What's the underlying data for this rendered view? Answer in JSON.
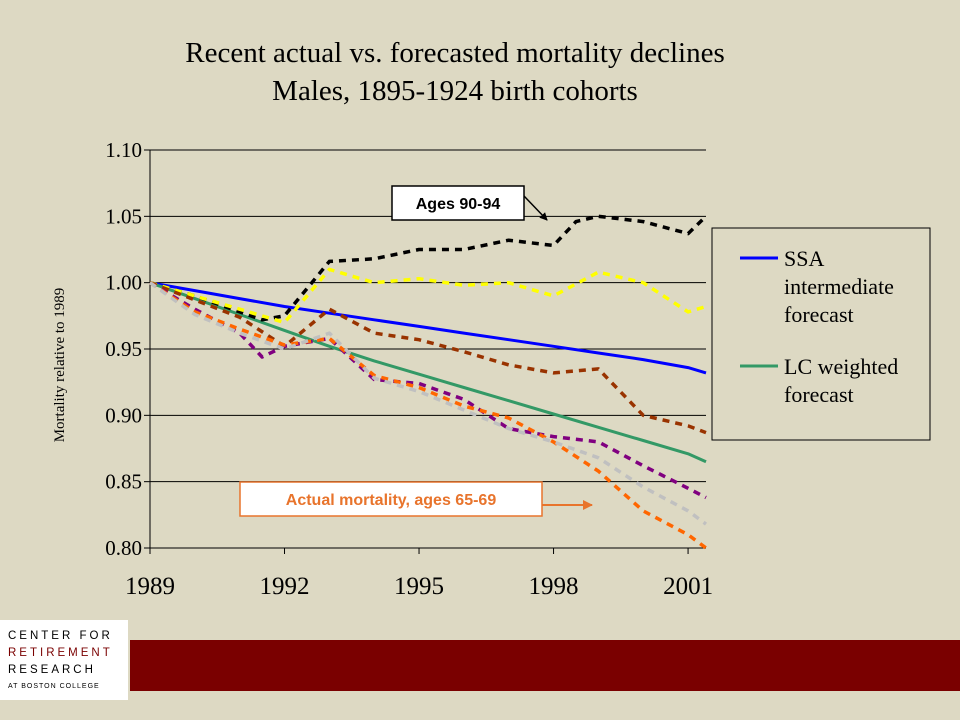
{
  "title": {
    "line1": "Recent actual vs. forecasted mortality declines",
    "line2": "Males, 1895-1924 birth cohorts"
  },
  "logo": {
    "line1": "CENTER FOR",
    "line2": "RETIREMENT",
    "line3": "RESEARCH",
    "line4": "AT BOSTON COLLEGE"
  },
  "colors": {
    "background": "#ddd9c3",
    "footer_bar": "#7a0000"
  },
  "chart_data": {
    "type": "line",
    "ylabel": "Mortality relative to 1989",
    "xlim": [
      1989,
      2001.4
    ],
    "ylim": [
      0.8,
      1.1
    ],
    "xticks": [
      1989,
      1992,
      1995,
      1998,
      2001
    ],
    "xtick_labels": [
      "1989",
      "1992",
      "1995",
      "1998",
      "2001"
    ],
    "yticks": [
      0.8,
      0.85,
      0.9,
      0.95,
      1.0,
      1.05,
      1.1
    ],
    "ytick_labels": [
      "0.80",
      "0.85",
      "0.90",
      "0.95",
      "1.00",
      "1.05",
      "1.10"
    ],
    "grid": "horizontal",
    "legend": {
      "placement": "right",
      "entries": [
        "SSA intermediate forecast",
        "LC weighted forecast"
      ]
    },
    "annotations": [
      {
        "text": "Ages 90-94",
        "target_series": "dashed-black"
      },
      {
        "text": "Actual mortality, ages 65-69",
        "target_series": "dashed-orange"
      }
    ],
    "series": [
      {
        "name": "SSA intermediate forecast",
        "style": "solid",
        "color": "#0000ff",
        "x": [
          1989,
          1990,
          1991,
          1992,
          1993,
          1994,
          1995,
          1996,
          1997,
          1998,
          1999,
          2000,
          2001,
          2001.4
        ],
        "y": [
          1.0,
          0.994,
          0.988,
          0.982,
          0.977,
          0.972,
          0.967,
          0.962,
          0.957,
          0.952,
          0.947,
          0.942,
          0.936,
          0.932
        ]
      },
      {
        "name": "LC weighted forecast",
        "style": "solid",
        "color": "#339966",
        "x": [
          1989,
          1990,
          1991,
          1992,
          1993,
          1994,
          1995,
          1996,
          1997,
          1998,
          1999,
          2000,
          2001,
          2001.4
        ],
        "y": [
          1.0,
          0.988,
          0.976,
          0.964,
          0.952,
          0.941,
          0.931,
          0.921,
          0.911,
          0.901,
          0.891,
          0.881,
          0.871,
          0.865
        ]
      },
      {
        "style": "dashed",
        "color": "#000000",
        "x": [
          1989,
          1990,
          1991,
          1991.5,
          1992,
          1993,
          1994,
          1995,
          1996,
          1997,
          1998,
          1998.5,
          1999,
          2000,
          2001,
          2001.4
        ],
        "y": [
          1.0,
          0.99,
          0.978,
          0.972,
          0.975,
          1.016,
          1.018,
          1.025,
          1.025,
          1.032,
          1.028,
          1.046,
          1.05,
          1.046,
          1.037,
          1.05
        ]
      },
      {
        "style": "dashed",
        "color": "#ffff00",
        "x": [
          1989,
          1990,
          1991,
          1992,
          1993,
          1994,
          1995,
          1996,
          1997,
          1998,
          1999,
          2000,
          2001,
          2001.4
        ],
        "y": [
          1.0,
          0.99,
          0.98,
          0.97,
          1.01,
          1.0,
          1.003,
          0.998,
          1.0,
          0.99,
          1.008,
          1.0,
          0.978,
          0.982
        ]
      },
      {
        "style": "dashed",
        "color": "#993300",
        "x": [
          1989,
          1990,
          1991,
          1992,
          1993,
          1994,
          1995,
          1996,
          1997,
          1998,
          1999,
          2000,
          2001,
          2001.4
        ],
        "y": [
          1.0,
          0.987,
          0.974,
          0.952,
          0.98,
          0.962,
          0.957,
          0.948,
          0.938,
          0.932,
          0.935,
          0.9,
          0.892,
          0.887
        ]
      },
      {
        "style": "dashed",
        "color": "#800080",
        "x": [
          1989,
          1990,
          1991,
          1991.5,
          1992,
          1993,
          1994,
          1995,
          1996,
          1997,
          1998,
          1999,
          2000,
          2001,
          2001.4
        ],
        "y": [
          1.0,
          0.98,
          0.962,
          0.944,
          0.952,
          0.958,
          0.927,
          0.924,
          0.912,
          0.89,
          0.884,
          0.88,
          0.862,
          0.845,
          0.838
        ]
      },
      {
        "style": "dashed",
        "color": "#ff6600",
        "x": [
          1989,
          1990,
          1991,
          1992,
          1993,
          1994,
          1995,
          1996,
          1997,
          1998,
          1999,
          2000,
          2001,
          2001.4
        ],
        "y": [
          1.0,
          0.978,
          0.965,
          0.953,
          0.958,
          0.93,
          0.921,
          0.907,
          0.898,
          0.88,
          0.858,
          0.828,
          0.81,
          0.8
        ]
      },
      {
        "style": "dashed",
        "color": "#c0c0c0",
        "x": [
          1989,
          1990,
          1991,
          1992,
          1993,
          1994,
          1995,
          1996,
          1997,
          1998,
          1999,
          2000,
          2001,
          2001.4
        ],
        "y": [
          1.0,
          0.976,
          0.962,
          0.95,
          0.962,
          0.928,
          0.918,
          0.904,
          0.89,
          0.88,
          0.868,
          0.846,
          0.828,
          0.818
        ]
      }
    ]
  }
}
